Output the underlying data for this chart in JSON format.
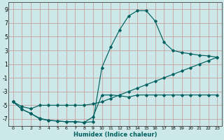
{
  "xlabel": "Humidex (Indice chaleur)",
  "bg_color": "#cce8e8",
  "grid_color": "#c8a0a0",
  "line_color": "#006060",
  "xlim": [
    -0.5,
    23.5
  ],
  "ylim": [
    -8,
    10
  ],
  "xticks": [
    0,
    1,
    2,
    3,
    4,
    5,
    6,
    7,
    8,
    9,
    10,
    11,
    12,
    13,
    14,
    15,
    16,
    17,
    18,
    19,
    20,
    21,
    22,
    23
  ],
  "yticks": [
    -7,
    -5,
    -3,
    -1,
    1,
    3,
    5,
    7,
    9
  ],
  "line1_x": [
    0,
    1,
    2,
    3,
    4,
    5,
    6,
    7,
    8,
    9,
    10,
    11,
    12,
    13,
    14,
    15,
    16,
    17,
    18,
    19,
    20,
    21,
    22,
    23
  ],
  "line1_y": [
    -4.5,
    -5.6,
    -6.2,
    -7.0,
    -7.2,
    -7.3,
    -7.4,
    -7.4,
    -7.5,
    -6.7,
    -3.5,
    -3.5,
    -3.6,
    -3.8,
    -3.5,
    -3.5,
    -3.5,
    -3.5,
    -3.5,
    -3.5,
    -3.5,
    -3.5,
    -3.5,
    -3.5
  ],
  "line2_x": [
    0,
    1,
    2,
    3,
    4,
    5,
    6,
    7,
    8,
    9,
    10,
    11,
    12,
    13,
    14,
    15,
    16,
    17,
    18,
    19,
    20,
    21,
    22,
    23
  ],
  "line2_y": [
    -4.5,
    -5.6,
    -6.2,
    -6.9,
    -7.2,
    -7.3,
    -7.4,
    -7.4,
    -7.5,
    -7.4,
    0.5,
    3.5,
    6.0,
    8.0,
    8.8,
    8.8,
    7.3,
    4.2,
    3.0,
    2.7,
    2.5,
    2.3,
    2.2,
    2.0
  ],
  "line3_x": [
    0,
    1,
    2,
    3,
    4,
    5,
    6,
    7,
    8,
    9,
    10,
    11,
    12,
    13,
    14,
    15,
    16,
    17,
    18,
    19,
    20,
    21,
    22,
    23
  ],
  "line3_y": [
    -4.5,
    -5.2,
    -5.5,
    -5.0,
    -5.0,
    -5.0,
    -5.0,
    -5.0,
    -5.0,
    -4.8,
    -4.5,
    -4.0,
    -3.5,
    -3.0,
    -2.5,
    -2.0,
    -1.5,
    -1.0,
    -0.5,
    0.0,
    0.5,
    1.0,
    1.5,
    2.0
  ]
}
